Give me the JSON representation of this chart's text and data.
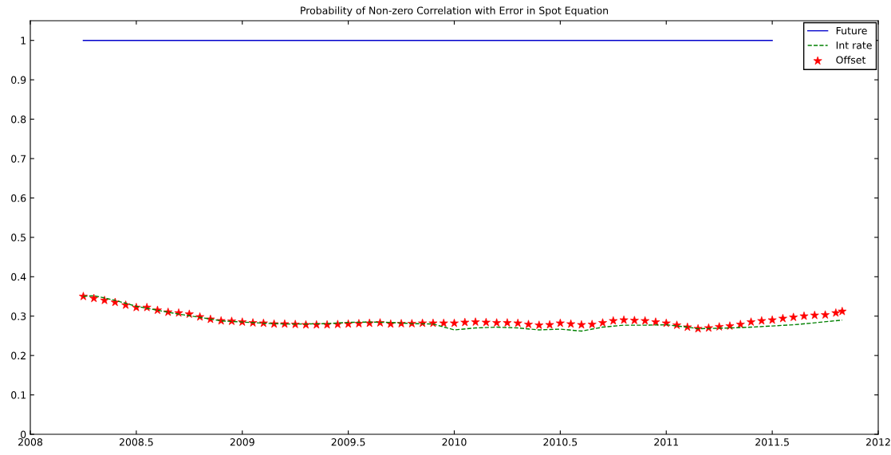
{
  "chart_data": {
    "type": "line",
    "title": "Probability of Non-zero Correlation with Error in Spot Equation",
    "xlim": [
      2008,
      2012
    ],
    "xticks": [
      2008,
      2008.5,
      2009,
      2009.5,
      2010,
      2010.5,
      2011,
      2011.5,
      2012
    ],
    "ylim": [
      0,
      1.05
    ],
    "yticks": [
      0,
      0.1,
      0.2,
      0.3,
      0.4,
      0.5,
      0.6,
      0.7,
      0.8,
      0.9,
      1
    ],
    "grid": false,
    "legend": "top right",
    "series": [
      {
        "name": "Future",
        "color": "#0000cc",
        "line_style": "solid",
        "marker": "none",
        "x": [
          2008.25,
          2011.5
        ],
        "values": [
          1,
          1
        ]
      },
      {
        "name": "Int rate",
        "color": "#008000",
        "line_style": "dashed",
        "marker": "none",
        "x": [
          2008.25,
          2008.3,
          2008.4,
          2008.5,
          2008.6,
          2008.7,
          2008.8,
          2008.9,
          2009.0,
          2009.1,
          2009.2,
          2009.3,
          2009.4,
          2009.5,
          2009.6,
          2009.7,
          2009.8,
          2009.9,
          2010.0,
          2010.1,
          2010.2,
          2010.3,
          2010.4,
          2010.5,
          2010.6,
          2010.7,
          2010.8,
          2010.9,
          2011.0,
          2011.1,
          2011.15,
          2011.3,
          2011.4,
          2011.5,
          2011.6,
          2011.7,
          2011.83
        ],
        "values": [
          0.35,
          0.352,
          0.34,
          0.325,
          0.315,
          0.305,
          0.297,
          0.288,
          0.285,
          0.282,
          0.28,
          0.28,
          0.281,
          0.284,
          0.285,
          0.284,
          0.281,
          0.28,
          0.265,
          0.27,
          0.272,
          0.27,
          0.265,
          0.267,
          0.262,
          0.272,
          0.277,
          0.277,
          0.278,
          0.272,
          0.268,
          0.27,
          0.272,
          0.275,
          0.278,
          0.283,
          0.29
        ]
      },
      {
        "name": "Offset",
        "type": "scatter",
        "color": "#ff0000",
        "marker": "star",
        "x": [
          2008.25,
          2008.3,
          2008.35,
          2008.4,
          2008.45,
          2008.5,
          2008.55,
          2008.6,
          2008.65,
          2008.7,
          2008.75,
          2008.8,
          2008.85,
          2008.9,
          2008.95,
          2009.0,
          2009.05,
          2009.1,
          2009.15,
          2009.2,
          2009.25,
          2009.3,
          2009.35,
          2009.4,
          2009.45,
          2009.5,
          2009.55,
          2009.6,
          2009.65,
          2009.7,
          2009.75,
          2009.8,
          2009.85,
          2009.9,
          2009.95,
          2010.0,
          2010.05,
          2010.1,
          2010.15,
          2010.2,
          2010.25,
          2010.3,
          2010.35,
          2010.4,
          2010.45,
          2010.5,
          2010.55,
          2010.6,
          2010.65,
          2010.7,
          2010.75,
          2010.8,
          2010.85,
          2010.9,
          2010.95,
          2011.0,
          2011.05,
          2011.1,
          2011.15,
          2011.2,
          2011.25,
          2011.3,
          2011.35,
          2011.4,
          2011.45,
          2011.5,
          2011.55,
          2011.6,
          2011.65,
          2011.7,
          2011.75,
          2011.8,
          2011.83
        ],
        "values": [
          0.35,
          0.345,
          0.34,
          0.335,
          0.328,
          0.322,
          0.322,
          0.315,
          0.31,
          0.308,
          0.305,
          0.298,
          0.292,
          0.288,
          0.287,
          0.285,
          0.283,
          0.282,
          0.28,
          0.28,
          0.279,
          0.278,
          0.278,
          0.278,
          0.279,
          0.28,
          0.281,
          0.282,
          0.283,
          0.28,
          0.281,
          0.281,
          0.282,
          0.282,
          0.282,
          0.282,
          0.284,
          0.285,
          0.284,
          0.283,
          0.283,
          0.282,
          0.279,
          0.277,
          0.278,
          0.282,
          0.28,
          0.278,
          0.279,
          0.283,
          0.288,
          0.29,
          0.289,
          0.288,
          0.285,
          0.282,
          0.277,
          0.272,
          0.268,
          0.27,
          0.273,
          0.275,
          0.279,
          0.285,
          0.288,
          0.29,
          0.294,
          0.297,
          0.3,
          0.302,
          0.303,
          0.308,
          0.312
        ]
      }
    ]
  }
}
